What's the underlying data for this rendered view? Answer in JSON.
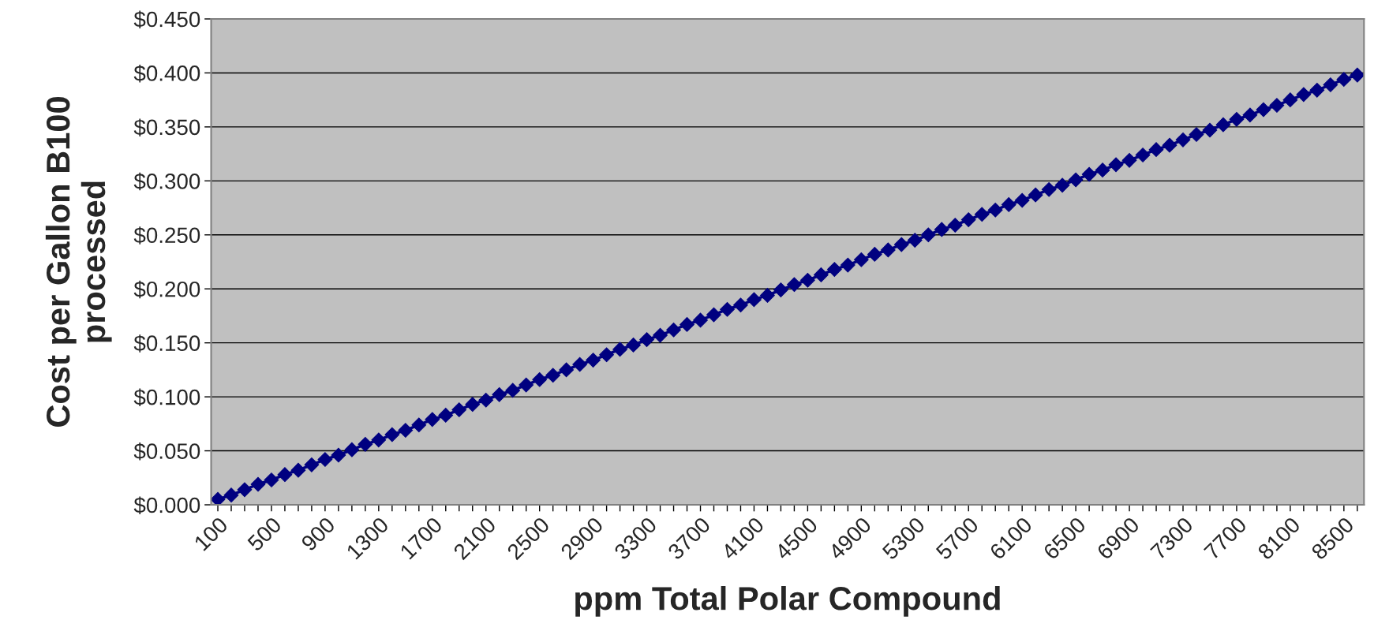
{
  "chart_data": {
    "type": "line",
    "xlabel": "ppm Total Polar Compound",
    "ylabel": "Cost per Gallon B100\nprocessed",
    "categories": [
      "100",
      null,
      null,
      null,
      "500",
      null,
      null,
      null,
      "900",
      null,
      null,
      null,
      "1300",
      null,
      null,
      null,
      "1700",
      null,
      null,
      null,
      "2100",
      null,
      null,
      null,
      "2500",
      null,
      null,
      null,
      "2900",
      null,
      null,
      null,
      "3300",
      null,
      null,
      null,
      "3700",
      null,
      null,
      null,
      "4100",
      null,
      null,
      null,
      "4500",
      null,
      null,
      null,
      "4900",
      null,
      null,
      null,
      "5300",
      null,
      null,
      null,
      "5700",
      null,
      null,
      null,
      "6100",
      null,
      null,
      null,
      "6500",
      null,
      null,
      null,
      "6900",
      null,
      null,
      null,
      "7300",
      null,
      null,
      null,
      "7700",
      null,
      null,
      null,
      "8100",
      null,
      null,
      null,
      "8500",
      null
    ],
    "series": [
      {
        "color": "#000080",
        "values": [
          0.005,
          0.009,
          0.014,
          0.019,
          0.023,
          0.028,
          0.032,
          0.037,
          0.042,
          0.046,
          0.051,
          0.056,
          0.06,
          0.065,
          0.069,
          0.074,
          0.079,
          0.083,
          0.088,
          0.093,
          0.097,
          0.102,
          0.106,
          0.111,
          0.116,
          0.12,
          0.125,
          0.13,
          0.134,
          0.139,
          0.144,
          0.148,
          0.153,
          0.157,
          0.162,
          0.167,
          0.171,
          0.176,
          0.181,
          0.185,
          0.19,
          0.194,
          0.199,
          0.204,
          0.208,
          0.213,
          0.218,
          0.222,
          0.227,
          0.232,
          0.236,
          0.241,
          0.245,
          0.25,
          0.255,
          0.259,
          0.264,
          0.269,
          0.273,
          0.278,
          0.282,
          0.287,
          0.292,
          0.296,
          0.301,
          0.306,
          0.31,
          0.315,
          0.319,
          0.324,
          0.329,
          0.333,
          0.338,
          0.343,
          0.347,
          0.352,
          0.357,
          0.361,
          0.366,
          0.37,
          0.375,
          0.38,
          0.384,
          0.389,
          0.394,
          0.398
        ]
      }
    ],
    "ylim": [
      0,
      0.45
    ],
    "yticks": [
      {
        "value": 0,
        "label": "$0.000"
      },
      {
        "value": 0.05,
        "label": "$0.050"
      },
      {
        "value": 0.1,
        "label": "$0.100"
      },
      {
        "value": 0.15,
        "label": "$0.150"
      },
      {
        "value": 0.2,
        "label": "$0.200"
      },
      {
        "value": 0.25,
        "label": "$0.250"
      },
      {
        "value": 0.3,
        "label": "$0.300"
      },
      {
        "value": 0.35,
        "label": "$0.350"
      },
      {
        "value": 0.4,
        "label": "$0.400"
      },
      {
        "value": 0.45,
        "label": "$0.450"
      }
    ],
    "grid": "y",
    "marker": "diamond",
    "line_style": "solid"
  }
}
